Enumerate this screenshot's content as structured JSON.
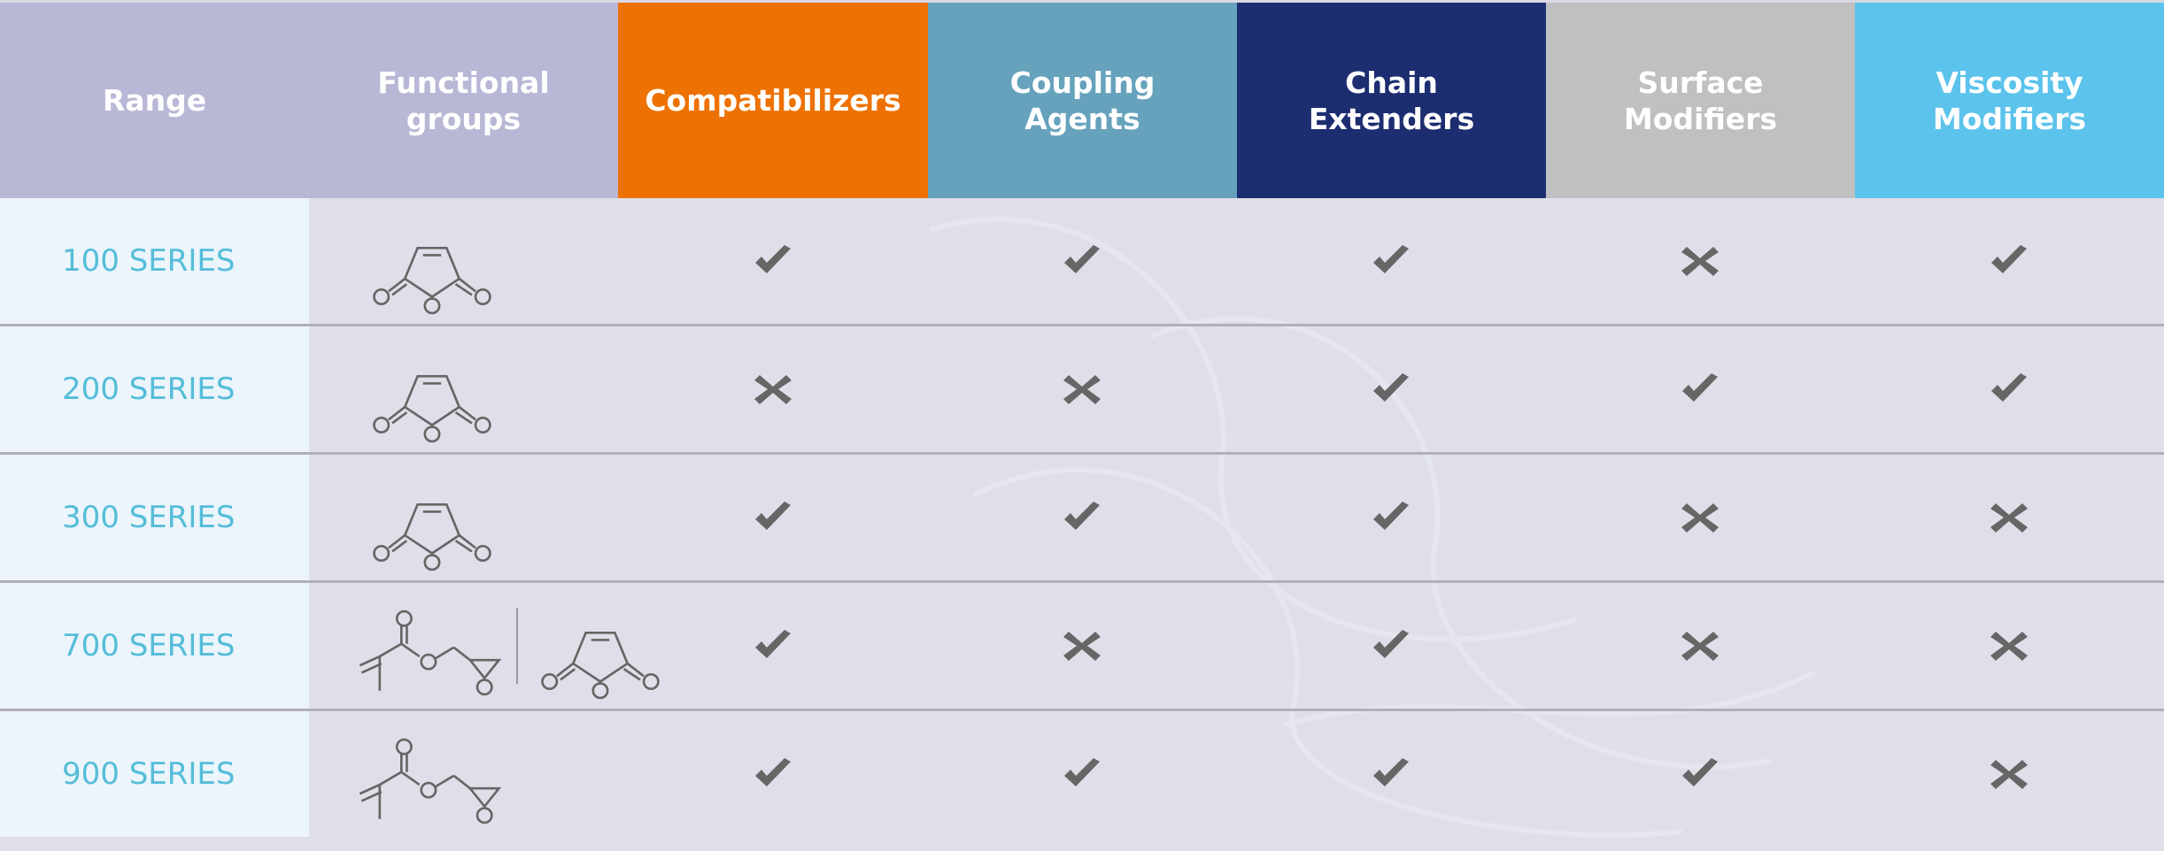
{
  "header": {
    "range": "Range",
    "functional_groups": "Functional groups",
    "applications": [
      {
        "label": "Compatibilizers",
        "color": "#ee7203"
      },
      {
        "label": "Coupling Agents",
        "color": "#66a2bc"
      },
      {
        "label": "Chain Extenders",
        "color": "#1c2d70"
      },
      {
        "label": "Surface Modifiers",
        "color": "#bfc0c2"
      },
      {
        "label": "Viscosity Modifiers",
        "color": "#5bc3ec"
      }
    ]
  },
  "colors": {
    "range_text": "#55bdd9",
    "mark": "#666666",
    "row_bg": "#dedfe9",
    "range_bg": "#ebf5fb"
  },
  "rows": [
    {
      "range": "100 SERIES",
      "groups": [
        "maleic-anhydride-icon"
      ],
      "marks": [
        "check",
        "check",
        "check",
        "cross",
        "check"
      ]
    },
    {
      "range": "200 SERIES",
      "groups": [
        "maleic-anhydride-icon"
      ],
      "marks": [
        "cross",
        "cross",
        "check",
        "check",
        "check"
      ]
    },
    {
      "range": "300 SERIES",
      "groups": [
        "maleic-anhydride-icon"
      ],
      "marks": [
        "check",
        "check",
        "check",
        "cross",
        "cross"
      ]
    },
    {
      "range": "700 SERIES",
      "groups": [
        "glycidyl-methacrylate-icon",
        "maleic-anhydride-icon"
      ],
      "marks": [
        "check",
        "cross",
        "check",
        "cross",
        "cross"
      ]
    },
    {
      "range": "900 SERIES",
      "groups": [
        "glycidyl-methacrylate-icon"
      ],
      "marks": [
        "check",
        "check",
        "check",
        "check",
        "cross"
      ]
    }
  ]
}
